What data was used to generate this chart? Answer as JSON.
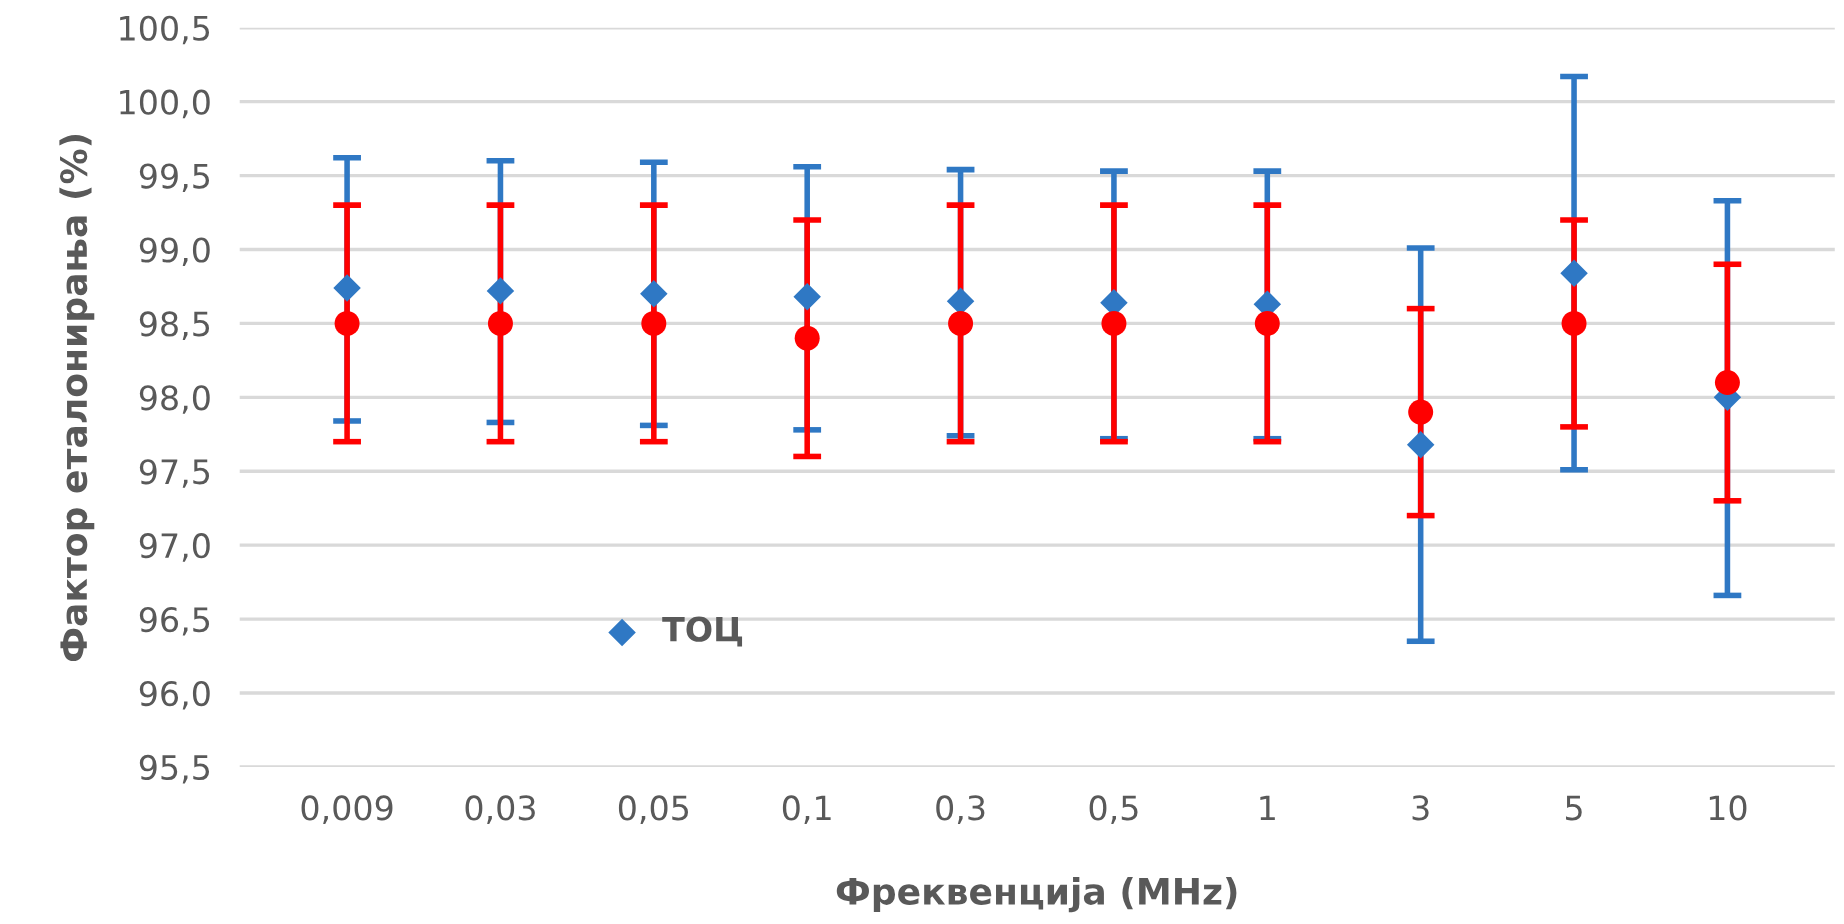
{
  "chart_data": {
    "type": "scatter",
    "xlabel": "Фреквенција (MHz)",
    "ylabel": "Фактор еталонирања (%)",
    "categories": [
      "0,009",
      "0,03",
      "0,05",
      "0,1",
      "0,3",
      "0,5",
      "1",
      "3",
      "5",
      "10"
    ],
    "ylim": [
      95.5,
      100.5
    ],
    "yticks": [
      {
        "value": 95.5,
        "label": "95,5"
      },
      {
        "value": 96.0,
        "label": "96,0"
      },
      {
        "value": 96.5,
        "label": "96,5"
      },
      {
        "value": 97.0,
        "label": "97,0"
      },
      {
        "value": 97.5,
        "label": "97,5"
      },
      {
        "value": 98.0,
        "label": "98,0"
      },
      {
        "value": 98.5,
        "label": "98,5"
      },
      {
        "value": 99.0,
        "label": "99,0"
      },
      {
        "value": 99.5,
        "label": "99,5"
      },
      {
        "value": 100.0,
        "label": "100,0"
      },
      {
        "value": 100.5,
        "label": "100,5"
      }
    ],
    "grid": "y",
    "legend": "bottom left",
    "series": [
      {
        "name": "ТОЦ",
        "color": "#2f78c4",
        "marker": "diamond",
        "values": [
          98.74,
          98.72,
          98.7,
          98.68,
          98.65,
          98.64,
          98.63,
          97.68,
          98.84,
          98.0
        ],
        "errors": [
          [
            97.84,
            99.62
          ],
          [
            97.83,
            99.6
          ],
          [
            97.81,
            99.59
          ],
          [
            97.78,
            99.56
          ],
          [
            97.74,
            99.54
          ],
          [
            97.72,
            99.53
          ],
          [
            97.72,
            99.53
          ],
          [
            96.35,
            99.01
          ],
          [
            97.51,
            100.17
          ],
          [
            96.66,
            99.33
          ]
        ]
      },
      {
        "color": "#ff0000",
        "marker": "circle",
        "values": [
          98.5,
          98.5,
          98.5,
          98.4,
          98.5,
          98.5,
          98.5,
          97.9,
          98.5,
          98.1
        ],
        "errors": [
          0.8,
          0.8,
          0.8,
          0.8,
          0.8,
          0.8,
          0.8,
          0.7,
          0.7,
          0.8
        ]
      }
    ]
  }
}
